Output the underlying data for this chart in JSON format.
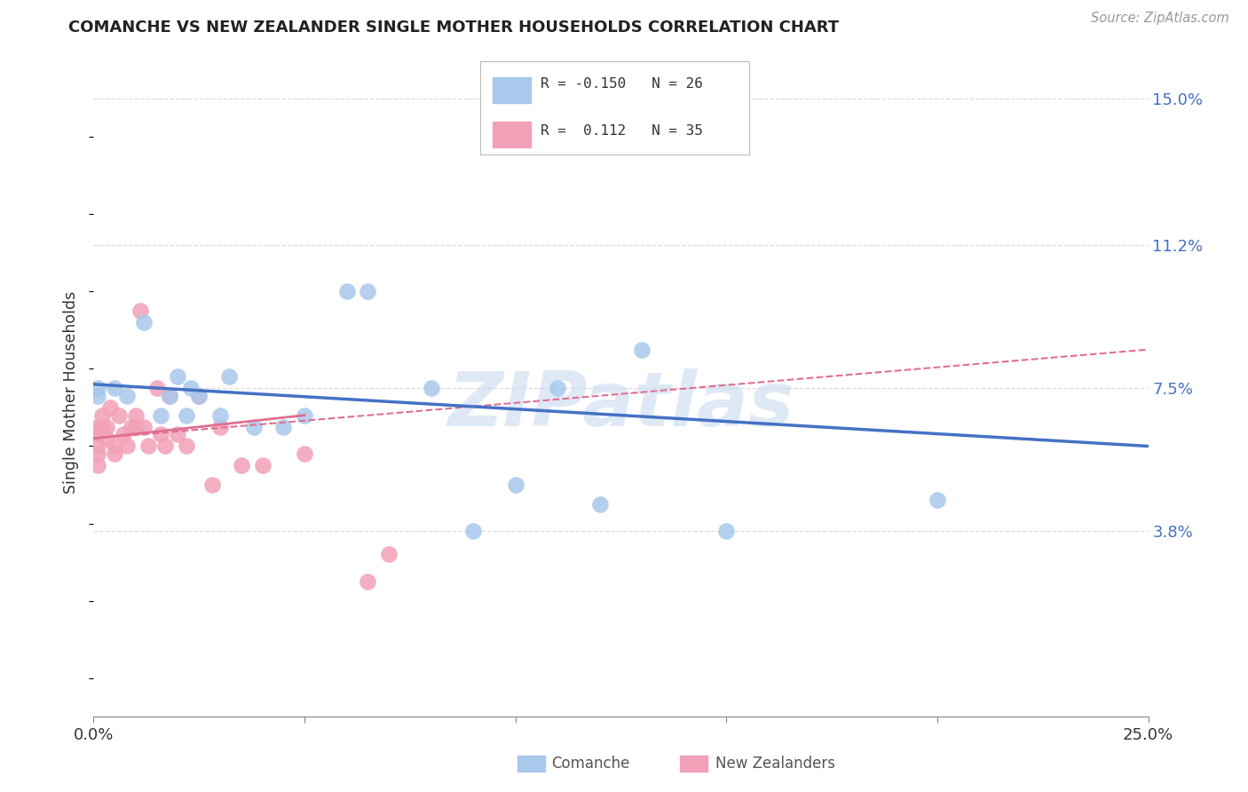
{
  "title": "COMANCHE VS NEW ZEALANDER SINGLE MOTHER HOUSEHOLDS CORRELATION CHART",
  "source": "Source: ZipAtlas.com",
  "ylabel": "Single Mother Households",
  "xlim": [
    0.0,
    0.25
  ],
  "ylim": [
    -0.01,
    0.158
  ],
  "xticks": [
    0.0,
    0.05,
    0.1,
    0.15,
    0.2,
    0.25
  ],
  "xtick_labels": [
    "0.0%",
    "",
    "",
    "",
    "",
    "25.0%"
  ],
  "ytick_right_values": [
    0.15,
    0.112,
    0.075,
    0.038
  ],
  "ytick_right_labels": [
    "15.0%",
    "11.2%",
    "7.5%",
    "3.8%"
  ],
  "blue_color": "#A8C8EC",
  "pink_color": "#F2A0B8",
  "blue_line_color": "#4472C4",
  "pink_line_color": "#E07090",
  "watermark": "ZIPatlas",
  "grid_color": "#DDDDDD",
  "comanche_x": [
    0.001,
    0.001,
    0.005,
    0.008,
    0.012,
    0.016,
    0.018,
    0.02,
    0.022,
    0.023,
    0.025,
    0.03,
    0.032,
    0.038,
    0.05,
    0.06,
    0.065,
    0.08,
    0.09,
    0.1,
    0.11,
    0.12,
    0.15,
    0.2,
    0.13,
    0.045
  ],
  "comanche_y": [
    0.075,
    0.073,
    0.075,
    0.073,
    0.092,
    0.068,
    0.073,
    0.078,
    0.068,
    0.075,
    0.073,
    0.068,
    0.078,
    0.065,
    0.068,
    0.1,
    0.1,
    0.075,
    0.038,
    0.05,
    0.075,
    0.045,
    0.038,
    0.046,
    0.085,
    0.065
  ],
  "nz_x": [
    0.001,
    0.001,
    0.001,
    0.001,
    0.001,
    0.002,
    0.002,
    0.003,
    0.003,
    0.004,
    0.005,
    0.005,
    0.006,
    0.007,
    0.008,
    0.009,
    0.01,
    0.01,
    0.011,
    0.012,
    0.013,
    0.015,
    0.016,
    0.017,
    0.018,
    0.02,
    0.022,
    0.025,
    0.028,
    0.03,
    0.035,
    0.04,
    0.05,
    0.065,
    0.07
  ],
  "nz_y": [
    0.065,
    0.063,
    0.06,
    0.058,
    0.055,
    0.068,
    0.065,
    0.065,
    0.062,
    0.07,
    0.06,
    0.058,
    0.068,
    0.063,
    0.06,
    0.065,
    0.068,
    0.065,
    0.095,
    0.065,
    0.06,
    0.075,
    0.063,
    0.06,
    0.073,
    0.063,
    0.06,
    0.073,
    0.05,
    0.065,
    0.055,
    0.055,
    0.058,
    0.025,
    0.032
  ]
}
